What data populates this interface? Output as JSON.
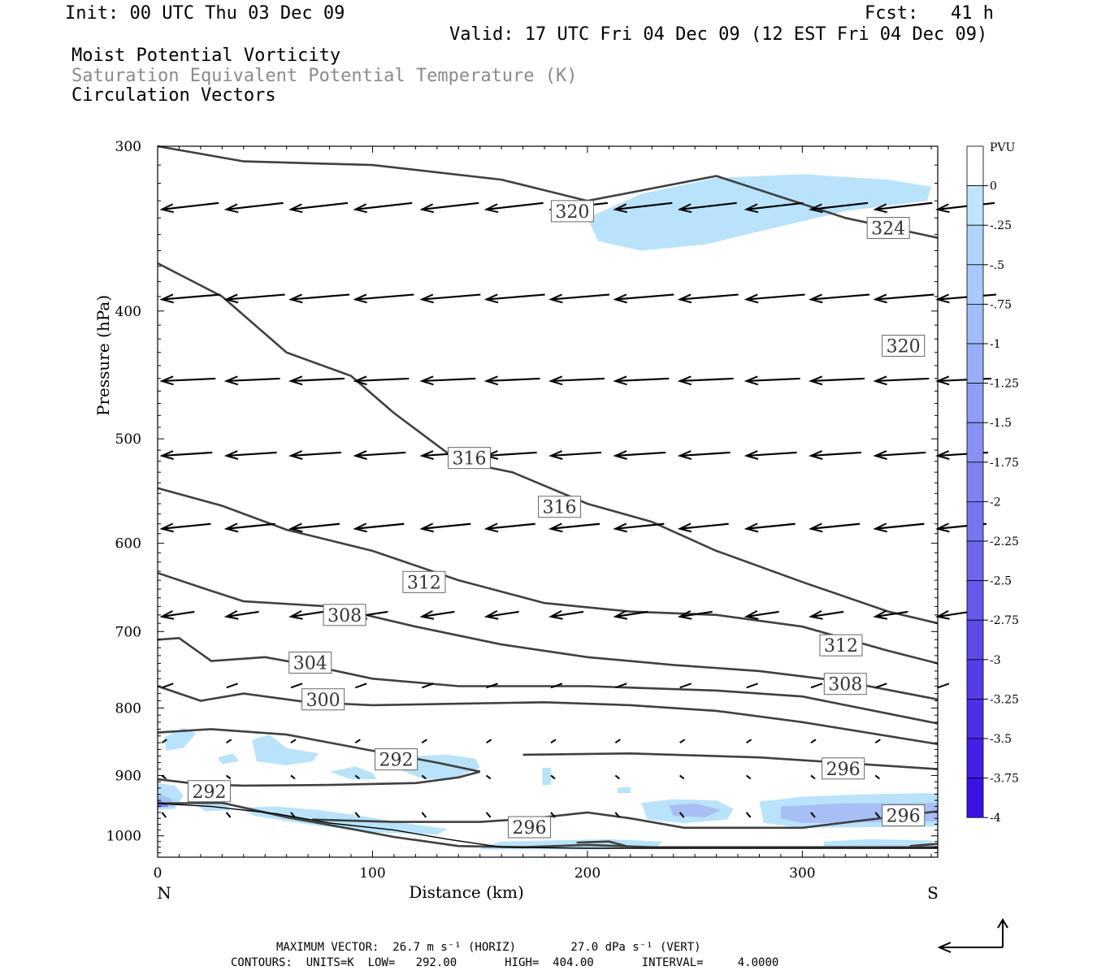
{
  "header": {
    "init": "Init: 00 UTC Thu 03 Dec 09",
    "fcst": "Fcst:   41 h",
    "valid": "Valid: 17 UTC Fri 04 Dec 09 (12 EST Fri 04 Dec 09)",
    "field1": "Moist Potential Vorticity",
    "field2": "Saturation Equivalent Potential Temperature (K)",
    "field3": "Circulation Vectors"
  },
  "footer": {
    "max_vector": "MAXIMUM VECTOR:  26.7 m s⁻¹ (HORIZ)        27.0 dPa s⁻¹ (VERT)",
    "contours": "CONTOURS:  UNITS=K  LOW=   292.00       HIGH=  404.00       INTERVAL=     4.0000"
  },
  "colors": {
    "contour": "#404040",
    "vector": "#000000",
    "mpv_light": "#b8e3fa",
    "mpv_mid": "#a8bff5",
    "mpv_dark": "#6f7cf0"
  },
  "chart_data": {
    "type": "cross-section",
    "xlabel": "Distance (km)",
    "ylabel": "Pressure (hPa)",
    "xlim": [
      0,
      363
    ],
    "ylim": [
      1038,
      300
    ],
    "y_scale": "log",
    "xticks": [
      0,
      100,
      200,
      300
    ],
    "yticks": [
      300,
      400,
      500,
      600,
      700,
      800,
      900,
      1000
    ],
    "left_end_label": "N",
    "right_end_label": "S",
    "grid": false,
    "colorbar": {
      "title": "PVU",
      "levels": [
        "0",
        "-.25",
        "-.5",
        "-.75",
        "-1",
        "-1.25",
        "-1.5",
        "-1.75",
        "-2",
        "-2.25",
        "-2.5",
        "-2.75",
        "-3",
        "-3.25",
        "-3.5",
        "-3.75",
        "-4"
      ],
      "colors": [
        "#ffffff",
        "#bfe5fb",
        "#b1d5f9",
        "#a9c9f8",
        "#a1bcf6",
        "#98aef5",
        "#909ff3",
        "#8891f2",
        "#7f83f0",
        "#7775ef",
        "#6e67ed",
        "#6659ec",
        "#5e4aea",
        "#553ce9",
        "#4d2ee7",
        "#4420e6",
        "#3b12e4"
      ]
    },
    "contour_labels": [
      {
        "text": "320",
        "x": 193,
        "p": 336
      },
      {
        "text": "324",
        "x": 340,
        "p": 346
      },
      {
        "text": "320",
        "x": 347,
        "p": 425
      },
      {
        "text": "316",
        "x": 145,
        "p": 517
      },
      {
        "text": "316",
        "x": 187,
        "p": 563
      },
      {
        "text": "312",
        "x": 124,
        "p": 642
      },
      {
        "text": "312",
        "x": 318,
        "p": 717
      },
      {
        "text": "308",
        "x": 87,
        "p": 680
      },
      {
        "text": "308",
        "x": 320,
        "p": 767
      },
      {
        "text": "304",
        "x": 71,
        "p": 739
      },
      {
        "text": "300",
        "x": 77,
        "p": 788
      },
      {
        "text": "292",
        "x": 111,
        "p": 875
      },
      {
        "text": "292",
        "x": 24,
        "p": 925
      },
      {
        "text": "296",
        "x": 319,
        "p": 889
      },
      {
        "text": "296",
        "x": 173,
        "p": 985
      },
      {
        "text": "296",
        "x": 347,
        "p": 965
      }
    ]
  }
}
